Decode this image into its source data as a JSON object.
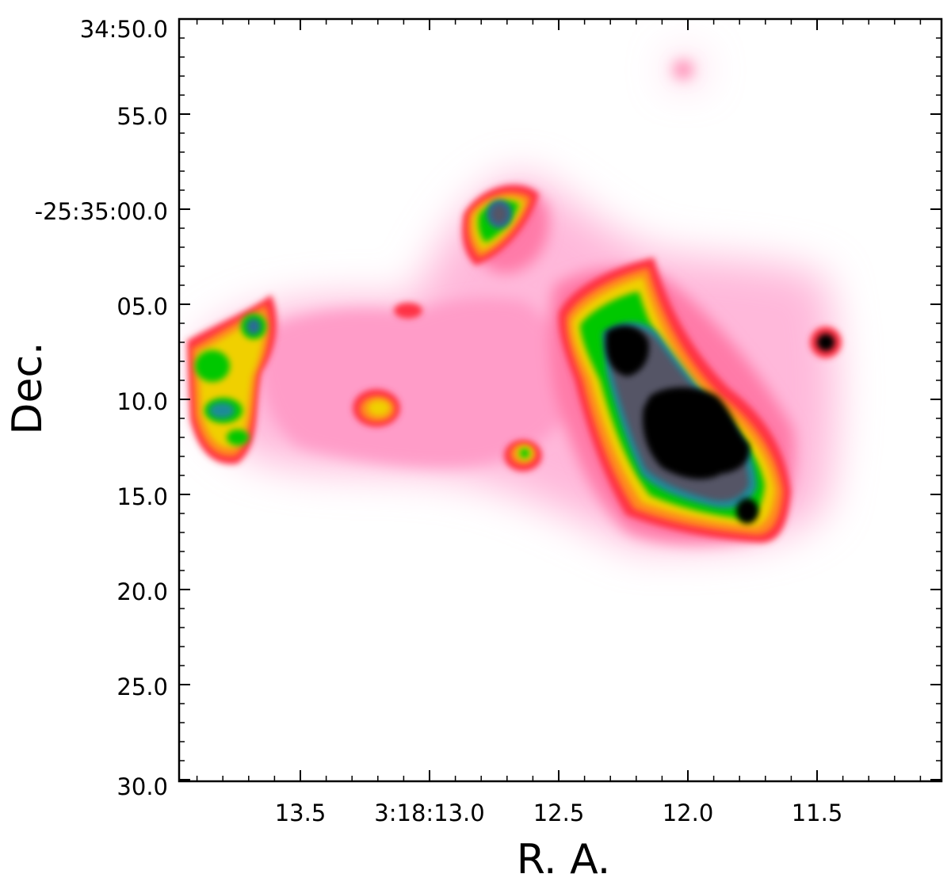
{
  "chart_data": {
    "type": "heatmap",
    "xlabel": "R. A.",
    "ylabel": "Dec.",
    "x_ticks": [
      "13.5",
      "3:18:13.0",
      "12.5",
      "12.0",
      "11.5"
    ],
    "y_ticks": [
      "34:50.0",
      "55.0",
      "-25:35:00.0",
      "05.0",
      "10.0",
      "15.0",
      "20.0",
      "25.0",
      "30.0"
    ],
    "colormap": [
      "#ffffff",
      "#ffd6ec",
      "#ff9bcd",
      "#ff5a8c",
      "#ff2a3a",
      "#ff8a1a",
      "#f0d000",
      "#00c800",
      "#1aa07a",
      "#2a6a9a",
      "#555566",
      "#000000"
    ]
  }
}
